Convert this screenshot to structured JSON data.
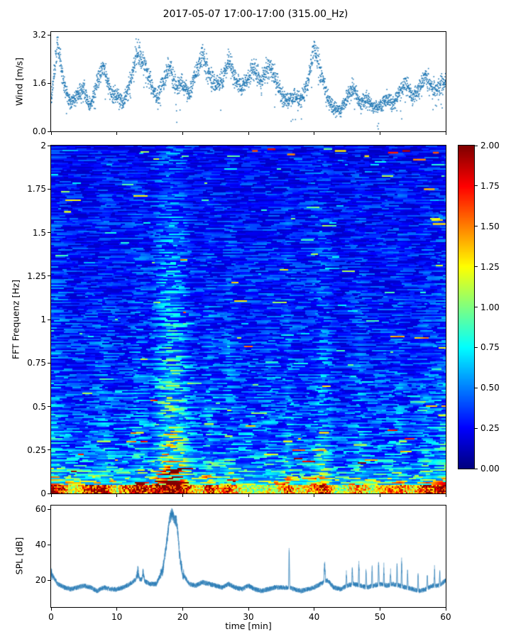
{
  "title": "2017-05-07 17:00-17:00 (315.00_Hz)",
  "colors": {
    "series_blue": "#1f77b4",
    "axis_black": "#000000",
    "background": "#ffffff"
  },
  "chart_data": [
    {
      "type": "scatter",
      "name": "wind-speed",
      "ylabel": "Wind [m/s]",
      "ytick_labels": [
        "0.0",
        "1.6",
        "3.2"
      ],
      "ytick_values": [
        0.0,
        1.6,
        3.2
      ],
      "ylim": [
        0,
        3.3
      ],
      "xlim": [
        0,
        60
      ],
      "x_minutes": [
        0,
        1,
        2,
        3,
        4,
        5,
        6,
        7,
        8,
        9,
        10,
        11,
        12,
        13,
        14,
        15,
        16,
        17,
        18,
        19,
        20,
        21,
        22,
        23,
        24,
        25,
        26,
        27,
        28,
        29,
        30,
        31,
        32,
        33,
        34,
        35,
        36,
        37,
        38,
        39,
        40,
        41,
        42,
        43,
        44,
        45,
        46,
        47,
        48,
        49,
        50,
        51,
        52,
        53,
        54,
        55,
        56,
        57,
        58,
        59,
        60
      ],
      "wind_mean_mps": [
        1.1,
        2.9,
        1.6,
        0.9,
        1.2,
        1.4,
        0.8,
        1.7,
        2.1,
        1.3,
        1.2,
        0.9,
        1.6,
        2.7,
        2.3,
        1.7,
        1.1,
        1.6,
        2.2,
        1.5,
        1.6,
        1.2,
        1.9,
        2.6,
        1.9,
        1.5,
        1.7,
        2.4,
        1.7,
        1.5,
        1.8,
        2.1,
        1.6,
        2.2,
        1.8,
        1.2,
        1.0,
        1.2,
        1.0,
        1.6,
        2.8,
        2.0,
        1.1,
        0.8,
        0.7,
        1.1,
        1.5,
        0.9,
        1.1,
        0.8,
        0.8,
        1.1,
        0.9,
        1.3,
        1.6,
        1.1,
        1.4,
        1.9,
        1.4,
        1.5,
        1.7
      ],
      "scatter_spread_mps": 0.22,
      "samples_per_minute": 24,
      "marker_color": "#1f77b4"
    },
    {
      "type": "heatmap",
      "name": "fft-spectrogram",
      "ylabel": "FFT Frequenz [Hz]",
      "ytick_labels": [
        "0",
        "0.25",
        "0.5",
        "0.75",
        "1",
        "1.25",
        "1.5",
        "1.75",
        "2"
      ],
      "ytick_values": [
        0,
        0.25,
        0.5,
        0.75,
        1,
        1.25,
        1.5,
        1.75,
        2
      ],
      "ylim": [
        0,
        2
      ],
      "xlim": [
        0,
        60
      ],
      "colormap": "jet",
      "value_range": [
        0,
        2
      ],
      "colorbar_tick_labels": [
        "0.00",
        "0.25",
        "0.50",
        "0.75",
        "1.00",
        "1.25",
        "1.50",
        "1.75",
        "2.00"
      ],
      "colorbar_tick_values": [
        0,
        0.25,
        0.5,
        0.75,
        1.0,
        1.25,
        1.5,
        1.75,
        2.0
      ],
      "freq_profile": {
        "freqs": [
          0,
          0.02,
          0.05,
          0.08,
          0.12,
          0.18,
          0.25,
          0.35,
          0.5,
          0.7,
          1.0,
          1.3,
          1.6,
          1.9,
          2.0
        ],
        "values": [
          1.95,
          1.7,
          1.0,
          0.75,
          0.6,
          0.5,
          0.45,
          0.4,
          0.36,
          0.33,
          0.3,
          0.28,
          0.27,
          0.25,
          0.24
        ]
      },
      "time_profile_multipliers": [
        1.35,
        1.3,
        1.1,
        1.0,
        0.95,
        1.0,
        1.0,
        1.05,
        1.2,
        1.05,
        0.95,
        1.0,
        1.05,
        1.3,
        1.25,
        1.05,
        1.45,
        1.9,
        2.2,
        2.1,
        1.8,
        1.3,
        1.05,
        1.1,
        1.35,
        1.1,
        1.05,
        1.3,
        1.1,
        1.0,
        1.1,
        1.05,
        1.0,
        1.15,
        1.05,
        1.0,
        1.35,
        1.05,
        1.0,
        1.0,
        1.1,
        1.45,
        1.3,
        0.95,
        0.9,
        0.95,
        1.0,
        1.2,
        1.0,
        0.95,
        1.05,
        1.0,
        1.05,
        1.2,
        1.0,
        0.95,
        1.05,
        1.25,
        1.1,
        1.3,
        1.4
      ],
      "column_fade_per_hz": 0.31,
      "bottom_band": {
        "freq_below": 0.05,
        "values": [
          2.0,
          1.9,
          1.6,
          1.1,
          1.2,
          1.6,
          1.7,
          1.8,
          1.9,
          1.4,
          1.1,
          1.5,
          1.7,
          1.9,
          1.8,
          1.6,
          1.9,
          2.0,
          2.0,
          2.0,
          1.9,
          1.6,
          1.2,
          1.3,
          1.8,
          1.5,
          1.4,
          1.7,
          1.4,
          1.2,
          1.1,
          1.0,
          1.1,
          1.2,
          1.1,
          1.3,
          1.7,
          1.3,
          1.2,
          1.3,
          1.5,
          1.8,
          1.7,
          1.2,
          1.0,
          1.2,
          1.4,
          1.5,
          1.3,
          1.1,
          1.3,
          1.4,
          1.5,
          1.6,
          1.4,
          1.3,
          1.5,
          1.8,
          1.6,
          1.9,
          2.0
        ]
      },
      "hot_dashes": [
        {
          "t": 2.5,
          "f": 1.62,
          "v": 1.2
        },
        {
          "t": 31,
          "f": 1.97,
          "v": 1.6
        },
        {
          "t": 33.5,
          "f": 1.98,
          "v": 1.8
        },
        {
          "t": 36.5,
          "f": 1.95,
          "v": 1.5
        },
        {
          "t": 44,
          "f": 1.97,
          "v": 1.3
        },
        {
          "t": 48,
          "f": 1.94,
          "v": 1.3
        },
        {
          "t": 52,
          "f": 1.96,
          "v": 1.7
        },
        {
          "t": 54,
          "f": 1.97,
          "v": 1.9
        },
        {
          "t": 56,
          "f": 1.92,
          "v": 1.5
        },
        {
          "t": 57.5,
          "f": 1.75,
          "v": 1.4
        },
        {
          "t": 58.5,
          "f": 1.96,
          "v": 1.6
        },
        {
          "t": 59,
          "f": 1.55,
          "v": 1.3
        },
        {
          "t": 18.5,
          "f": 0.62,
          "v": 1.1
        },
        {
          "t": 18,
          "f": 0.55,
          "v": 1.2
        },
        {
          "t": 41.5,
          "f": 0.35,
          "v": 1.3
        },
        {
          "t": 36,
          "f": 0.3,
          "v": 1.2
        },
        {
          "t": 47,
          "f": 0.28,
          "v": 1.1
        },
        {
          "t": 24,
          "f": 0.4,
          "v": 1.1
        },
        {
          "t": 27,
          "f": 0.33,
          "v": 1.1
        },
        {
          "t": 53.5,
          "f": 0.3,
          "v": 1.1
        },
        {
          "t": 59.5,
          "f": 0.45,
          "v": 1.2
        },
        {
          "t": 13.5,
          "f": 0.35,
          "v": 1.2
        },
        {
          "t": 8,
          "f": 0.3,
          "v": 1.1
        }
      ],
      "noise": {
        "seed": 1337,
        "streak_cells_min": 2,
        "streak_cells_max": 12,
        "bright_streak_prob": 0.02
      }
    },
    {
      "type": "line",
      "name": "spl",
      "ylabel": "SPL [dB]",
      "xlabel": "time [min]",
      "ytick_labels": [
        "20",
        "40",
        "60"
      ],
      "ytick_values": [
        20,
        40,
        60
      ],
      "ylim": [
        5,
        62
      ],
      "xtick_labels": [
        "0",
        "10",
        "20",
        "30",
        "40",
        "50",
        "60"
      ],
      "xtick_values": [
        0,
        10,
        20,
        30,
        40,
        50,
        60
      ],
      "xlim": [
        0,
        60
      ],
      "x_minutes": [
        0,
        1,
        2,
        3,
        4,
        5,
        6,
        7,
        8,
        9,
        10,
        11,
        12,
        13,
        14,
        15,
        16,
        17,
        18,
        19,
        20,
        21,
        22,
        23,
        24,
        25,
        26,
        27,
        28,
        29,
        30,
        31,
        32,
        33,
        34,
        35,
        36,
        37,
        38,
        39,
        40,
        41,
        42,
        43,
        44,
        45,
        46,
        47,
        48,
        49,
        50,
        51,
        52,
        53,
        54,
        55,
        56,
        57,
        58,
        59,
        60
      ],
      "spl_mean_db": [
        24,
        18,
        16,
        15,
        16,
        17,
        16,
        14,
        16,
        15,
        15,
        16,
        18,
        21,
        20,
        18,
        18,
        26,
        52,
        46,
        24,
        18,
        17,
        19,
        18,
        17,
        16,
        18,
        16,
        15,
        17,
        15,
        14,
        15,
        16,
        16,
        16,
        15,
        14,
        15,
        16,
        18,
        20,
        16,
        15,
        17,
        18,
        17,
        16,
        17,
        18,
        17,
        18,
        17,
        16,
        15,
        14,
        15,
        17,
        17,
        20
      ],
      "noise_band_db": 1.4,
      "spikes": [
        {
          "t": 13.2,
          "v": 25,
          "w": 0.3
        },
        {
          "t": 14.0,
          "v": 24,
          "w": 0.25
        },
        {
          "t": 18.4,
          "v": 58,
          "w": 0.7
        },
        {
          "t": 19.0,
          "v": 54,
          "w": 0.5
        },
        {
          "t": 36.2,
          "v": 37,
          "w": 0.1
        },
        {
          "t": 41.6,
          "v": 29,
          "w": 0.15
        },
        {
          "t": 44.9,
          "v": 24,
          "w": 0.1
        },
        {
          "t": 45.8,
          "v": 27,
          "w": 0.1
        },
        {
          "t": 46.8,
          "v": 30,
          "w": 0.1
        },
        {
          "t": 47.9,
          "v": 26,
          "w": 0.1
        },
        {
          "t": 48.8,
          "v": 29,
          "w": 0.1
        },
        {
          "t": 49.8,
          "v": 31,
          "w": 0.1
        },
        {
          "t": 50.6,
          "v": 27,
          "w": 0.1
        },
        {
          "t": 51.6,
          "v": 25,
          "w": 0.1
        },
        {
          "t": 52.6,
          "v": 28,
          "w": 0.1
        },
        {
          "t": 53.3,
          "v": 30,
          "w": 0.1
        },
        {
          "t": 54.2,
          "v": 25,
          "w": 0.1
        },
        {
          "t": 55.8,
          "v": 23,
          "w": 0.1
        },
        {
          "t": 57.2,
          "v": 24,
          "w": 0.1
        },
        {
          "t": 58.3,
          "v": 26,
          "w": 0.1
        },
        {
          "t": 59.1,
          "v": 24,
          "w": 0.1
        }
      ],
      "line_color": "#1f77b4"
    }
  ]
}
